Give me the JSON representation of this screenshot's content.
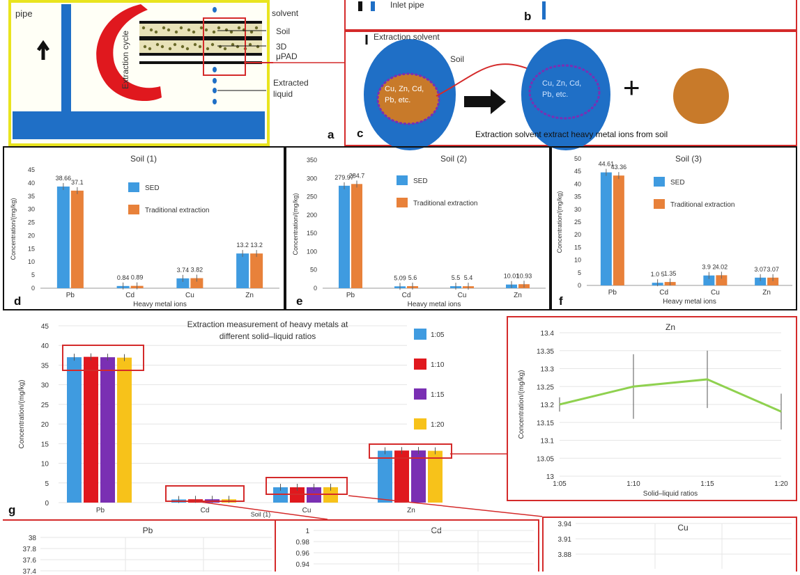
{
  "panel_a": {
    "letter": "a",
    "pipe_label": "pipe",
    "cycle_label": "Extraction cycle",
    "solvent_label": "solvent",
    "soil_label": "Soil",
    "pad_label": "3D μPAD",
    "extracted_label_1": "Extracted",
    "extracted_label_2": "liquid"
  },
  "panel_b": {
    "letter": "b",
    "inlet_label": "Inlet pipe"
  },
  "panel_c": {
    "letter": "c",
    "solvent_label": "Extraction solvent",
    "soil_label": "Soil",
    "ions_left_1": "Cu, Zn, Cd,",
    "ions_left_2": "Pb, etc.",
    "ions_right_1": "Cu, Zn, Cd,",
    "ions_right_2": "Pb, etc.",
    "plus": "+",
    "caption": "Extraction solvent extract heavy metal ions from soil",
    "colors": {
      "blue": "#1f6fc6",
      "brown": "#c87a2a",
      "arrow": "#111111"
    }
  },
  "chart_data": [
    {
      "panel": "d",
      "type": "bar",
      "title": "Soil (1)",
      "categories": [
        "Pb",
        "Cd",
        "Cu",
        "Zn"
      ],
      "series": [
        {
          "name": "SED",
          "color": "#3f9be0",
          "values": [
            38.66,
            0.84,
            3.74,
            13.2
          ],
          "labels": [
            "38.66",
            "0.84",
            "3.74",
            "13.2"
          ]
        },
        {
          "name": "Traditional extraction",
          "color": "#e8813a",
          "values": [
            37.1,
            0.89,
            3.82,
            13.2
          ],
          "labels": [
            "37.1",
            "0.89",
            "3.82",
            "13.2"
          ]
        }
      ],
      "ylim": [
        0,
        45
      ],
      "yticks": [
        0,
        5,
        10,
        15,
        20,
        25,
        30,
        35,
        40,
        45
      ],
      "ylabel": "Concentration/(mg/kg)",
      "xlabel": "Heavy metal ions"
    },
    {
      "panel": "e",
      "type": "bar",
      "title": "Soil (2)",
      "categories": [
        "Pb",
        "Cd",
        "Cu",
        "Zn"
      ],
      "series": [
        {
          "name": "SED",
          "color": "#3f9be0",
          "values": [
            279.97,
            5.09,
            5.5,
            10.01
          ],
          "labels": [
            "279.97",
            "5.09",
            "5.5",
            "10.01"
          ]
        },
        {
          "name": "Traditional extraction",
          "color": "#e8813a",
          "values": [
            284.7,
            5.6,
            5.4,
            10.93
          ],
          "labels": [
            "284.7",
            "5.6",
            "5.4",
            "10.93"
          ]
        }
      ],
      "ylim": [
        0,
        350
      ],
      "yticks": [
        0,
        50,
        100,
        150,
        200,
        250,
        300,
        350
      ],
      "ylabel": "Concentration/(mg/kg)",
      "xlabel": "Heavy metal ions"
    },
    {
      "panel": "f",
      "type": "bar",
      "title": "Soil (3)",
      "categories": [
        "Pb",
        "Cd",
        "Cu",
        "Zn"
      ],
      "series": [
        {
          "name": "SED",
          "color": "#3f9be0",
          "values": [
            44.61,
            1.05,
            3.92,
            3.07
          ],
          "labels": [
            "44.61",
            "1.0 5",
            "3.9 2",
            "3.07"
          ]
        },
        {
          "name": "Traditional extraction",
          "color": "#e8813a",
          "values": [
            43.36,
            1.35,
            4.02,
            3.07
          ],
          "labels": [
            "43.36",
            "1.35",
            "4.02",
            "3.07"
          ]
        }
      ],
      "ylim": [
        0,
        50
      ],
      "yticks": [
        0,
        5,
        10,
        15,
        20,
        25,
        30,
        35,
        40,
        45,
        50
      ],
      "ylabel": "Concentration/(mg/kg)",
      "xlabel": "Heavy metal ions"
    },
    {
      "panel": "g",
      "type": "bar",
      "title_lines": [
        "Extraction measurement of heavy metals at",
        "different solid–liquid ratios"
      ],
      "categories": [
        "Pb",
        "Cd",
        "Cu",
        "Zn"
      ],
      "series": [
        {
          "name": "1:05",
          "color": "#3f9be0",
          "values": [
            37.0,
            0.8,
            3.9,
            13.2
          ]
        },
        {
          "name": "1:10",
          "color": "#e0181e",
          "values": [
            37.1,
            0.85,
            3.9,
            13.25
          ]
        },
        {
          "name": "1:15",
          "color": "#7a2fb3",
          "values": [
            37.0,
            0.85,
            3.9,
            13.27
          ]
        },
        {
          "name": "1:20",
          "color": "#f7c21a",
          "values": [
            36.9,
            0.84,
            3.92,
            13.18
          ]
        }
      ],
      "ylim": [
        0,
        45
      ],
      "yticks": [
        0,
        5,
        10,
        15,
        20,
        25,
        30,
        35,
        40,
        45
      ],
      "ylabel": "Concentration/(mg/kg)",
      "xlabel": "Soil (1)"
    },
    {
      "panel": "zn-inset",
      "type": "line",
      "title": "Zn",
      "x": [
        "1:05",
        "1:10",
        "1:15",
        "1:20"
      ],
      "series": [
        {
          "color": "#8fd14f",
          "values": [
            13.2,
            13.25,
            13.27,
            13.18
          ],
          "errors": [
            0.02,
            0.09,
            0.08,
            0.05
          ]
        }
      ],
      "ylim": [
        13,
        13.4
      ],
      "yticks": [
        "13",
        "13.05",
        "13.1",
        "13.15",
        "13.2",
        "13.25",
        "13.3",
        "13.35",
        "13.4"
      ],
      "ylabel": "Concentration/(mg/kg)",
      "xlabel": "Solid–liquid ratios"
    },
    {
      "panel": "pb-inset",
      "type": "line",
      "title": "Pb",
      "yticks": [
        "37.4",
        "37.6",
        "37.8",
        "38"
      ]
    },
    {
      "panel": "cd-inset",
      "type": "line",
      "title": "Cd",
      "yticks": [
        "0.94",
        "0.96",
        "0.98",
        "1"
      ]
    },
    {
      "panel": "cu-inset",
      "type": "line",
      "title": "Cu",
      "yticks": [
        "3.88",
        "3.91",
        "3.94"
      ]
    }
  ]
}
